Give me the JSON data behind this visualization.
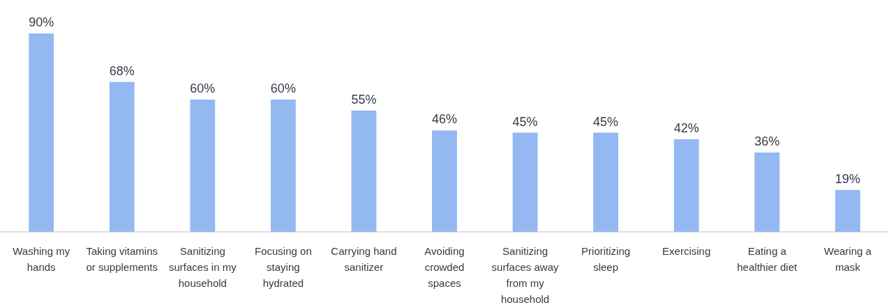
{
  "chart_data": {
    "type": "bar",
    "categories": [
      "Washing my hands",
      "Taking vitamins or supplements",
      "Sanitizing surfaces in my household",
      "Focusing on staying hydrated",
      "Carrying hand sanitizer",
      "Avoiding crowded spaces",
      "Sanitizing surfaces away from my household",
      "Prioritizing sleep",
      "Exercising",
      "Eating a healthier diet",
      "Wearing a mask"
    ],
    "values": [
      90,
      68,
      60,
      60,
      55,
      46,
      45,
      45,
      42,
      36,
      19
    ],
    "value_labels": [
      "90%",
      "68%",
      "60%",
      "60%",
      "55%",
      "46%",
      "45%",
      "45%",
      "42%",
      "36%",
      "19%"
    ],
    "color": "#94b8f2"
  }
}
